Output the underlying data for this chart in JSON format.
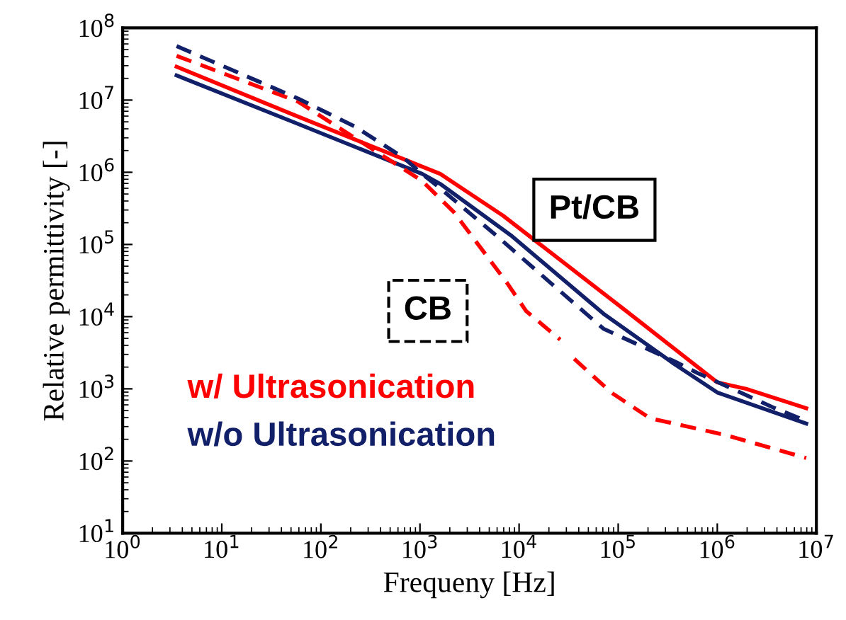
{
  "chart_data": {
    "type": "line",
    "xlabel": "Frequeny [Hz]",
    "ylabel": "Relative permittivity [-]",
    "log": "xy",
    "grid": false,
    "legend": "bottom left",
    "marker": "none",
    "xlim": [
      1,
      10000000
    ],
    "ylim": [
      10,
      100000000
    ],
    "xticks": [
      {
        "value": 1,
        "label": "10$^{0}$"
      },
      {
        "value": 10,
        "label": "10$^{1}$"
      },
      {
        "value": 100,
        "label": "10$^{2}$"
      },
      {
        "value": 1000,
        "label": "10$^{3}$"
      },
      {
        "value": 10000,
        "label": "10$^{4}$"
      },
      {
        "value": 100000,
        "label": "10$^{5}$"
      },
      {
        "value": 1000000,
        "label": "10$^{6}$"
      },
      {
        "value": 10000000,
        "label": "10$^{7}$"
      }
    ],
    "yticks": [
      {
        "value": 10,
        "label": "10$^{1}$"
      },
      {
        "value": 100,
        "label": "10$^{2}$"
      },
      {
        "value": 1000,
        "label": "10$^{3}$"
      },
      {
        "value": 10000,
        "label": "10$^{4}$"
      },
      {
        "value": 100000,
        "label": "10$^{5}$"
      },
      {
        "value": 1000000,
        "label": "10$^{6}$"
      },
      {
        "value": 10000000,
        "label": "10$^{7}$"
      },
      {
        "value": 100000000,
        "label": "10$^{8}$"
      }
    ],
    "annotations": [
      "Pt/CB",
      "CB"
    ],
    "series": [
      {
        "name": "w/ Ultrasonication",
        "color": "#ff0000",
        "line_style": "solid",
        "x": [
          3.5,
          54,
          1050,
          1600,
          6900,
          120000,
          1000000,
          1950000,
          7900000
        ],
        "values": [
          29000000,
          6200000,
          1200000,
          950000,
          250000,
          12000,
          1230,
          1000,
          540
        ]
      },
      {
        "name": "w/o Ultrasonication",
        "color": "#12206a",
        "line_style": "solid",
        "x": [
          3.5,
          54,
          1050,
          1600,
          8500,
          71000,
          370000,
          1000000,
          7900000
        ],
        "values": [
          22000000,
          4900000,
          950000,
          690000,
          130000,
          11000,
          2200,
          890,
          330
        ]
      },
      {
        "color": "#ff0000",
        "line_style": "dashed",
        "x": [
          3.5,
          59,
          1050,
          2200,
          7600,
          11750,
          26000,
          30000,
          36000,
          85000,
          210000,
          1200000,
          7900000
        ],
        "values": [
          41000000,
          9500000,
          760000,
          280000,
          29000,
          12000,
          4800,
          null,
          2600,
          890,
          390,
          230,
          110
        ]
      },
      {
        "color": "#12206a",
        "line_style": "dashed",
        "x": [
          3.5,
          59,
          220,
          680,
          1050,
          1600,
          6000,
          21000,
          71000,
          370000,
          630000,
          3800000,
          7900000
        ],
        "values": [
          56000000,
          10500000,
          4300000,
          1600000,
          950000,
          600000,
          130000,
          29000,
          6800,
          2400,
          1660,
          540,
          360
        ]
      }
    ]
  }
}
